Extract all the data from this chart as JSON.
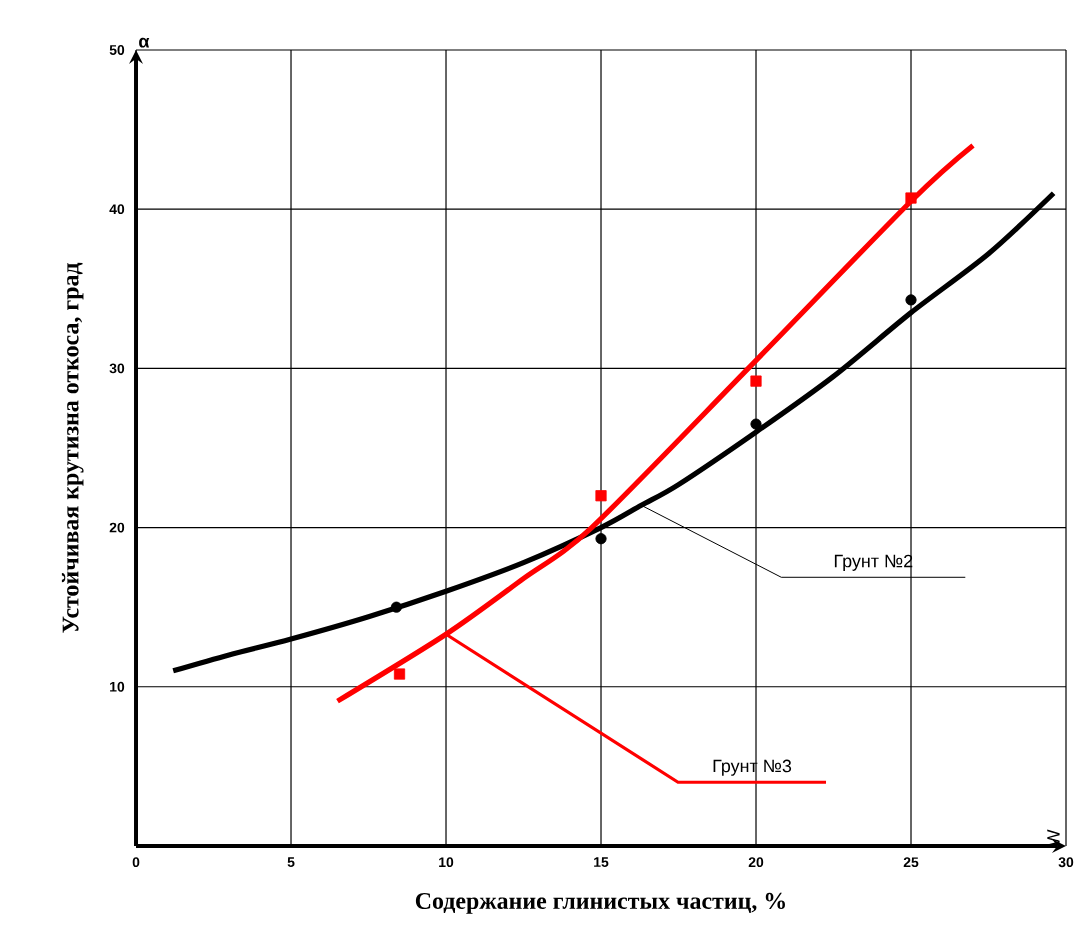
{
  "chart_data": {
    "type": "line",
    "xlabel": "Содержание глинистых частиц, %",
    "ylabel": "Устойчивая крутизна откоса, град",
    "xlim": [
      0,
      30
    ],
    "xticks": [
      0,
      5,
      10,
      15,
      20,
      25,
      30
    ],
    "ylim": [
      0,
      50
    ],
    "yticks": [
      10,
      20,
      30,
      40,
      50
    ],
    "grid": true,
    "series": [
      {
        "color": "#000000",
        "x": [
          1.2,
          3,
          5,
          7.5,
          10,
          12.5,
          15,
          16.3,
          17.5,
          20,
          22.5,
          25,
          27.5,
          29.6
        ],
        "values": [
          11,
          12,
          13,
          14.4,
          16,
          17.8,
          20,
          21.4,
          22.7,
          26,
          29.5,
          33.5,
          37.2,
          41
        ]
      },
      {
        "type": "scatter",
        "marker": "circle",
        "color": "#000000",
        "x": [
          8.4,
          15,
          20,
          25
        ],
        "values": [
          15,
          19.3,
          26.5,
          34.3
        ]
      },
      {
        "color": "#ff0000",
        "x": [
          6.5,
          10,
          12.5,
          14.7,
          19.75,
          25,
          27
        ],
        "values": [
          9.1,
          13.3,
          16.8,
          20,
          30,
          40.5,
          44
        ]
      },
      {
        "type": "scatter",
        "marker": "square",
        "color": "#ff0000",
        "x": [
          8.5,
          15,
          20,
          25
        ],
        "values": [
          10.8,
          22,
          29.2,
          40.7
        ]
      }
    ],
    "annotations": [
      {
        "text": "Грунт №2",
        "x": 16.3,
        "y": 21.4
      },
      {
        "text": "Грунт №3",
        "x": 10,
        "y": 13.3
      },
      "α",
      "W"
    ]
  }
}
